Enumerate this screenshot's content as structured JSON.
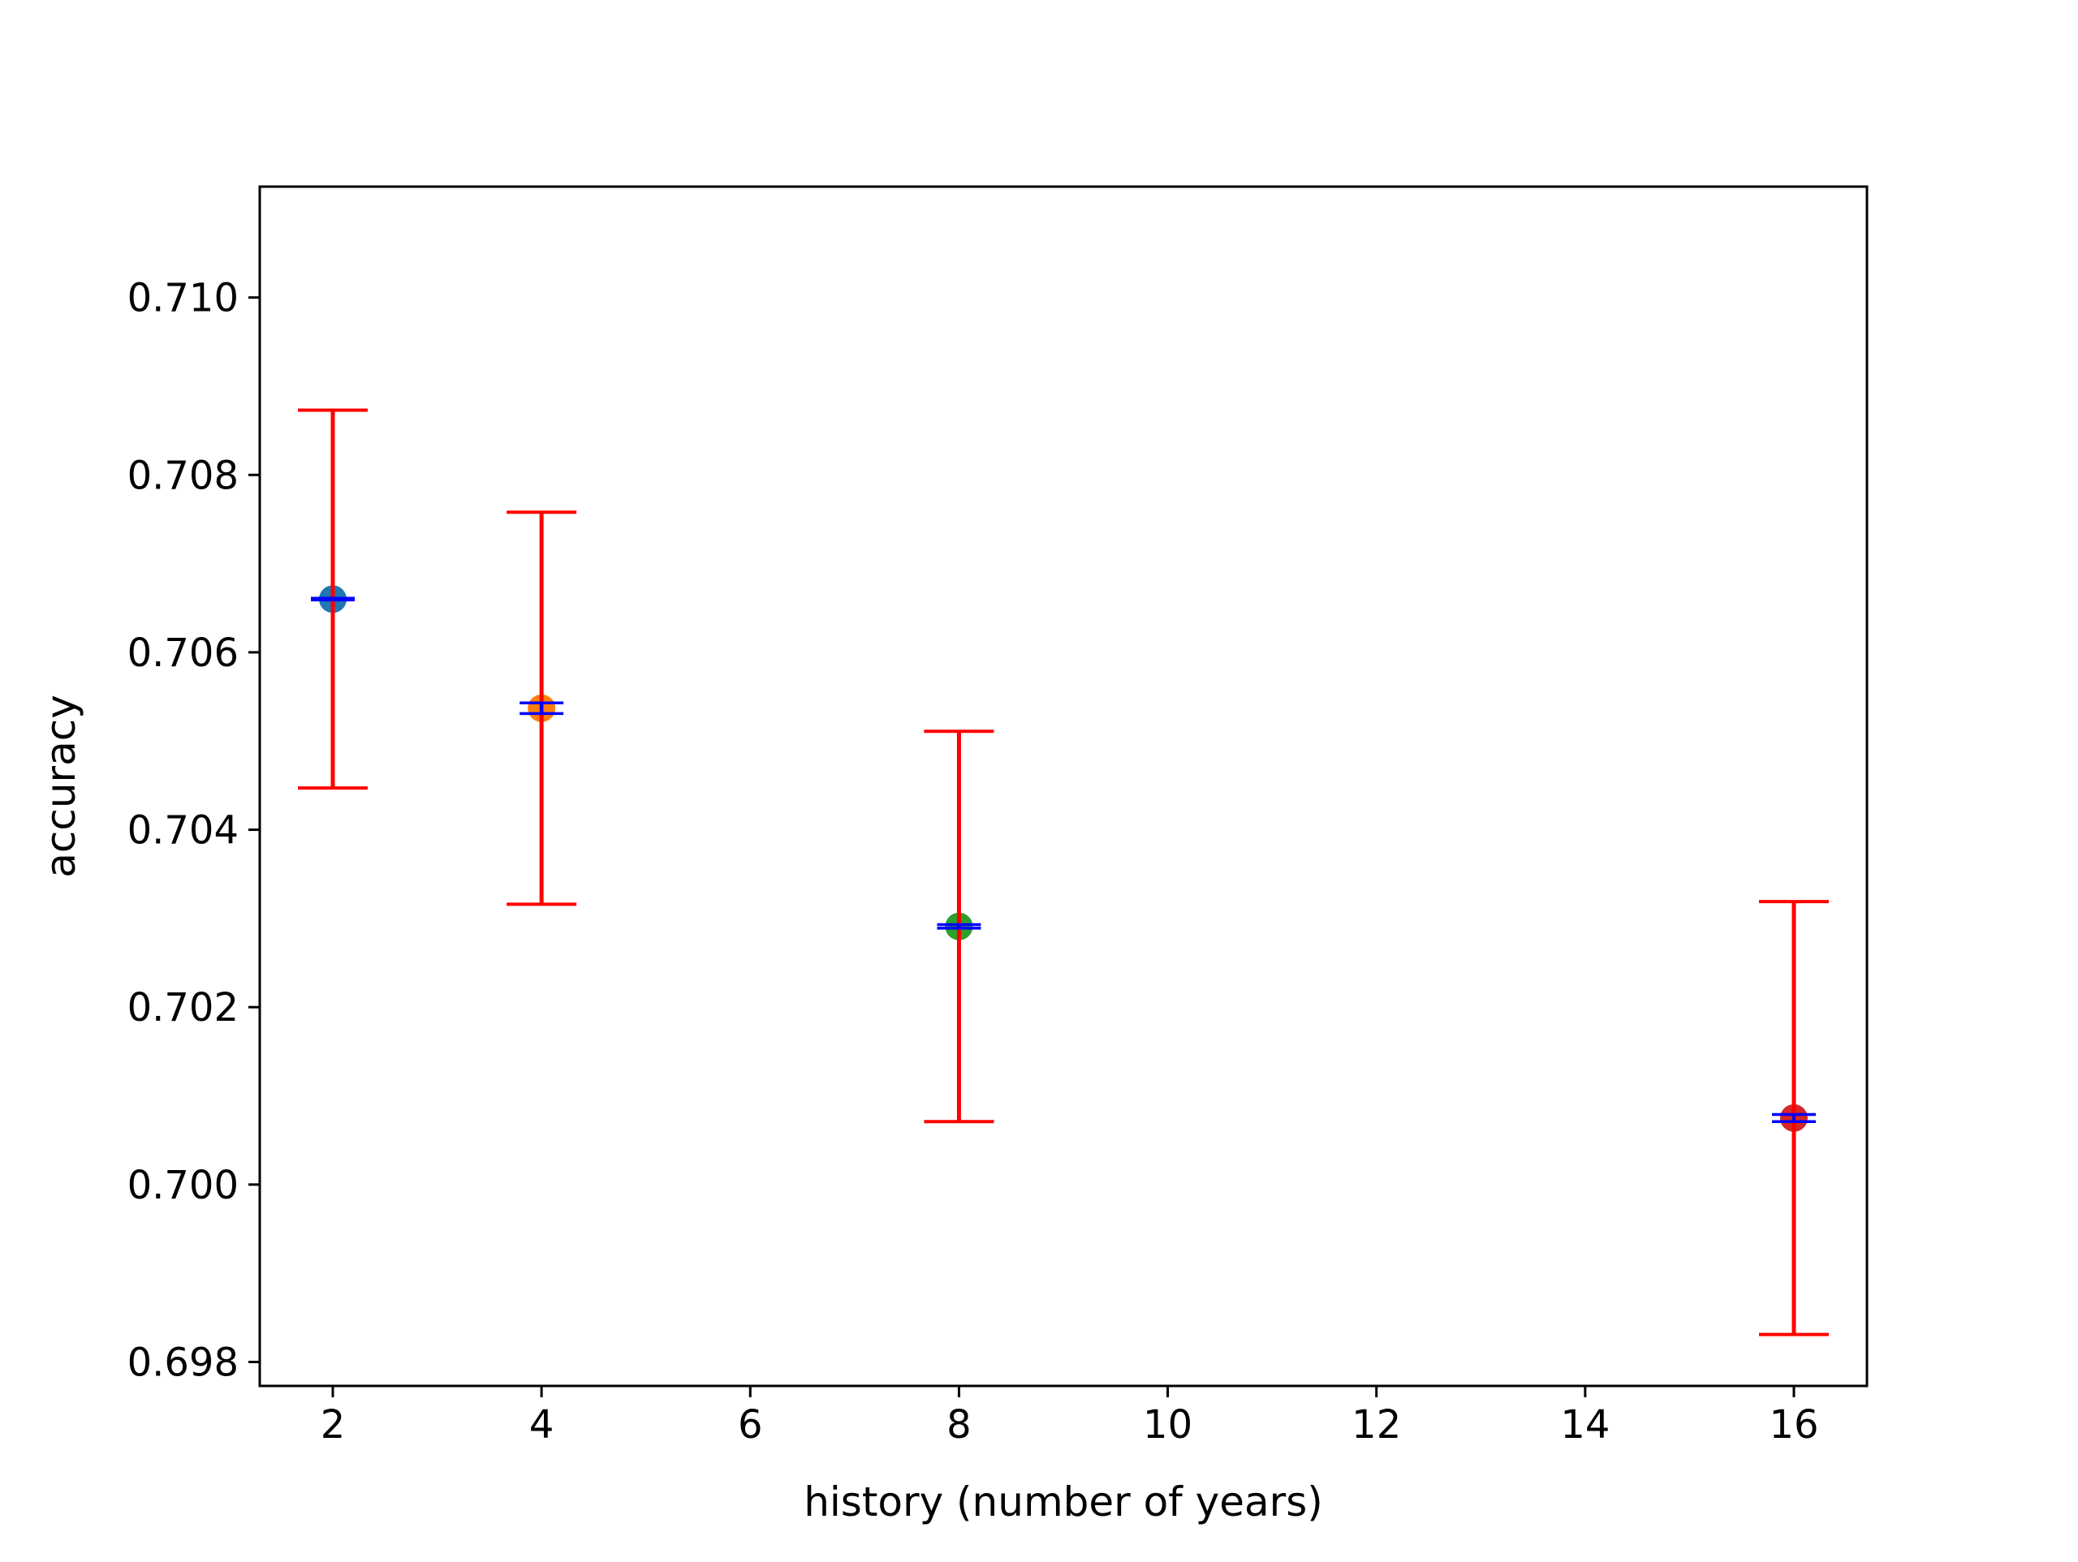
{
  "chart_data": {
    "type": "scatter",
    "xlabel": "history (number of years)",
    "ylabel": "accuracy",
    "xlim": [
      1.3,
      16.7
    ],
    "ylim": [
      0.69773,
      0.71125
    ],
    "xticks": [
      2,
      4,
      6,
      8,
      10,
      12,
      14,
      16
    ],
    "xtick_labels": [
      "2",
      "4",
      "6",
      "8",
      "10",
      "12",
      "14",
      "16"
    ],
    "yticks": [
      0.698,
      0.7,
      0.702,
      0.704,
      0.706,
      0.708,
      0.71
    ],
    "ytick_labels": [
      "0.698",
      "0.700",
      "0.702",
      "0.704",
      "0.706",
      "0.708",
      "0.710"
    ],
    "grid": false,
    "points": [
      {
        "x": 2,
        "y": 0.7066,
        "wide_err": 0.00213,
        "narrow_err": 1e-05,
        "color": "#1f77b4"
      },
      {
        "x": 4,
        "y": 0.70537,
        "wide_err": 0.00221,
        "narrow_err": 6e-05,
        "color": "#ff7f0e"
      },
      {
        "x": 8,
        "y": 0.70291,
        "wide_err": 0.0022,
        "narrow_err": 2e-05,
        "color": "#2ca02c"
      },
      {
        "x": 16,
        "y": 0.70075,
        "wide_err": 0.00244,
        "narrow_err": 4e-05,
        "color": "#d62728"
      }
    ],
    "wide_error_color": "#ff0000",
    "narrow_error_color": "#0000ff"
  }
}
